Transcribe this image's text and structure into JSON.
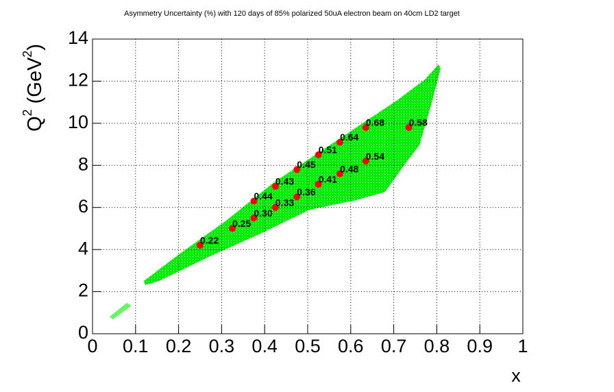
{
  "chart_data": {
    "type": "scatter",
    "title": "Asymmetry Uncertainty (%) with 120 days of 85% polarized 50uA electron beam on 40cm LD2 target",
    "x_label": "x",
    "y_label_parts": [
      "Q",
      "2",
      " (GeV",
      "2",
      ")"
    ],
    "xlim": [
      0,
      1
    ],
    "ylim": [
      0,
      14
    ],
    "xticks": [
      0,
      0.1,
      0.2,
      0.3,
      0.4,
      0.5,
      0.6,
      0.7,
      0.8,
      0.9,
      1
    ],
    "yticks": [
      0,
      2,
      4,
      6,
      8,
      10,
      12,
      14
    ],
    "grid": true,
    "color": "#ff0000",
    "region_color": "#00ee00",
    "x": [
      0.25,
      0.325,
      0.375,
      0.375,
      0.425,
      0.425,
      0.475,
      0.475,
      0.525,
      0.525,
      0.575,
      0.575,
      0.635,
      0.635,
      0.735
    ],
    "values": [
      4.2,
      5.0,
      5.5,
      6.3,
      6.0,
      7.0,
      6.5,
      7.8,
      7.1,
      8.5,
      7.6,
      9.1,
      8.2,
      9.8,
      9.8
    ],
    "point_labels": [
      "0.22",
      "0.25",
      "0.30",
      "0.44",
      "0.33",
      "0.43",
      "0.36",
      "0.45",
      "0.41",
      "0.51",
      "0.48",
      "0.64",
      "0.54",
      "0.68",
      "0.58"
    ]
  }
}
